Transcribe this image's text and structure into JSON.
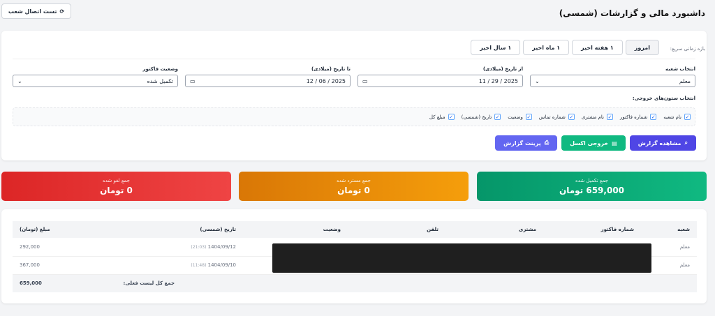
{
  "header": {
    "title": "داشبورد مالی و گزارشات (شمسی)",
    "test_button": "تست اتصال شعب"
  },
  "filters": {
    "quick_label": "بازه زمانی سریع:",
    "quick_buttons": [
      "امروز",
      "۱ هفته اخیر",
      "۱ ماه اخیر",
      "۱ سال اخیر"
    ],
    "branch_label": "انتخاب شعبه",
    "branch_value": "معلم",
    "from_label": "از تاریخ (میلادی)",
    "from_value": "11 / 29 / 2025",
    "to_label": "تا تاریخ (میلادی)",
    "to_value": "12 / 06 / 2025",
    "status_label": "وضعیت فاکتور",
    "status_value": "تکمیل شده",
    "columns_label": "انتخاب ستون‌های خروجی:",
    "columns": [
      "نام شعبه",
      "شماره فاکتور",
      "نام مشتری",
      "شماره تماس",
      "وضعیت",
      "تاریخ (شمسی)",
      "مبلغ کل"
    ]
  },
  "actions": {
    "view": "مشاهده گزارش",
    "excel": "خروجی اکسل",
    "print": "پرینت گزارش"
  },
  "stats": {
    "completed": {
      "label": "جمع تکمیل شده",
      "value": "659,000 تومان",
      "color": "#10b981"
    },
    "refunded": {
      "label": "جمع مسترد شده",
      "value": "0 تومان",
      "color": "#f59e0b"
    },
    "cancelled": {
      "label": "جمع لغو شده",
      "value": "0 تومان",
      "color": "#ef4444"
    }
  },
  "table": {
    "headers": [
      "شعبه",
      "شماره فاکتور",
      "مشتری",
      "تلفن",
      "وضعیت",
      "تاریخ (شمسی)",
      "مبلغ (تومان)"
    ],
    "rows": [
      {
        "branch": "معلم",
        "date": "1404/09/12",
        "time": "(21:03)",
        "amount": "292,000"
      },
      {
        "branch": "معلم",
        "date": "1404/09/10",
        "time": "(11:48)",
        "amount": "367,000"
      }
    ],
    "total_label": "جمع کل لیست فعلی:",
    "total_value": "659,000"
  }
}
